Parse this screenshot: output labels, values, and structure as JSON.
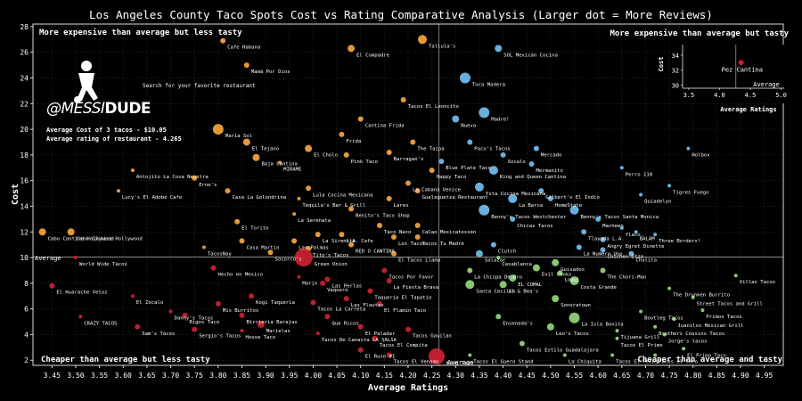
{
  "chart_data": {
    "type": "scatter",
    "title": "Los Angeles County Taco Spots Cost vs Rating Comparative Analysis (Larger dot = More Reviews)",
    "xlabel": "Average Ratings",
    "ylabel": "Cost",
    "xlim": [
      3.41,
      4.99
    ],
    "ylim": [
      1.6,
      28.2
    ],
    "x_ticks": [
      "3.45",
      "3.50",
      "3.55",
      "3.60",
      "3.65",
      "3.70",
      "3.75",
      "3.80",
      "3.85",
      "3.90",
      "3.95",
      "4.00",
      "4.05",
      "4.10",
      "4.15",
      "4.20",
      "4.25",
      "4.30",
      "4.35",
      "4.40",
      "4.45",
      "4.50",
      "4.55",
      "4.60",
      "4.65",
      "4.70",
      "4.75",
      "4.80",
      "4.85",
      "4.90",
      "4.95"
    ],
    "y_ticks": [
      2,
      4,
      6,
      8,
      10,
      12,
      14,
      16,
      18,
      20,
      22,
      24,
      26,
      28
    ],
    "average_rating": 4.265,
    "average_cost": 10.05,
    "average_label": "Average",
    "colors": {
      "expensive_less_tasty": "#f0a03c",
      "expensive_tastier": "#6fb8e8",
      "cheaper_less_tasty": "#c8202f",
      "cheaper_tastier": "#8fd17a",
      "grid": "#555555",
      "average_line": "#9a9a9a"
    },
    "quadrant_labels": {
      "top_left": "More expensive than average but less tasty",
      "top_right": "More expensive than average but tasty",
      "bottom_left": "Cheaper than average but less tasty",
      "bottom_right": "Cheaper than average and tasty"
    },
    "points": [
      {
        "x": 4.23,
        "y": 27.0,
        "s": 5,
        "label": "Tallula's"
      },
      {
        "x": 4.08,
        "y": 26.3,
        "s": 4,
        "label": "El Compadre"
      },
      {
        "x": 3.81,
        "y": 26.9,
        "s": 3,
        "label": "Cafe Habana"
      },
      {
        "x": 3.86,
        "y": 25.0,
        "s": 3,
        "label": "Mamá Por Dios"
      },
      {
        "x": 4.39,
        "y": 26.3,
        "s": 4,
        "label": "SOL Mexican Cocina"
      },
      {
        "x": 4.32,
        "y": 24.0,
        "s": 6,
        "label": "Toca Madera"
      },
      {
        "x": 4.19,
        "y": 22.3,
        "s": 3,
        "label": "Tacos El Leoncito"
      },
      {
        "x": 4.1,
        "y": 20.8,
        "s": 3,
        "label": "Cantina Frida"
      },
      {
        "x": 4.06,
        "y": 19.6,
        "s": 3,
        "label": "Frida"
      },
      {
        "x": 4.36,
        "y": 21.3,
        "s": 6,
        "label": "Madre!"
      },
      {
        "x": 4.3,
        "y": 20.8,
        "s": 4,
        "label": "Nueva"
      },
      {
        "x": 4.21,
        "y": 19.0,
        "s": 3,
        "label": "The Taipa"
      },
      {
        "x": 3.8,
        "y": 20.0,
        "s": 6,
        "label": "María Sol"
      },
      {
        "x": 3.86,
        "y": 19.0,
        "s": 4,
        "label": "El Tejano"
      },
      {
        "x": 3.88,
        "y": 17.8,
        "s": 4,
        "label": "Baja Cantina"
      },
      {
        "x": 3.99,
        "y": 18.5,
        "s": 4,
        "label": "El Cholo"
      },
      {
        "x": 4.07,
        "y": 18.0,
        "s": 3,
        "label": "Pink Taco"
      },
      {
        "x": 4.16,
        "y": 18.2,
        "s": 3,
        "label": "Barragan's"
      },
      {
        "x": 4.33,
        "y": 19.0,
        "s": 3,
        "label": "Paco's Tacos"
      },
      {
        "x": 4.27,
        "y": 17.5,
        "s": 3,
        "label": "Blue Plate Taco"
      },
      {
        "x": 4.25,
        "y": 16.8,
        "s": 3,
        "label": "Happy Taco"
      },
      {
        "x": 4.4,
        "y": 18.0,
        "s": 3,
        "label": "Socalo"
      },
      {
        "x": 4.47,
        "y": 18.5,
        "s": 3,
        "label": "Mercado"
      },
      {
        "x": 4.38,
        "y": 16.8,
        "s": 5,
        "label": "King and Queen Cantina"
      },
      {
        "x": 4.46,
        "y": 17.3,
        "s": 3,
        "label": "Mermanito"
      },
      {
        "x": 4.79,
        "y": 18.5,
        "s": 2,
        "label": "Holbox"
      },
      {
        "x": 4.65,
        "y": 17.0,
        "s": 2,
        "label": "Perro 110"
      },
      {
        "x": 4.75,
        "y": 15.6,
        "s": 2,
        "label": "Tigres Fuego"
      },
      {
        "x": 4.69,
        "y": 14.9,
        "s": 2,
        "label": "Quiadelyn"
      },
      {
        "x": 3.93,
        "y": 17.4,
        "s": 2,
        "label": "MIRAME"
      },
      {
        "x": 3.62,
        "y": 16.8,
        "s": 2,
        "label": "Antojito La Cosa Neustra"
      },
      {
        "x": 3.75,
        "y": 16.2,
        "s": 3,
        "label": "Erne's"
      },
      {
        "x": 3.59,
        "y": 15.2,
        "s": 2,
        "label": "Lucy's El Adobe Cafe"
      },
      {
        "x": 3.82,
        "y": 15.2,
        "s": 3,
        "label": "Casa La Golondrina"
      },
      {
        "x": 3.99,
        "y": 15.4,
        "s": 3,
        "label": "Lula Cocina Mexicana"
      },
      {
        "x": 3.97,
        "y": 14.6,
        "s": 2,
        "label": "Tequila's Bar & Grill"
      },
      {
        "x": 4.2,
        "y": 15.8,
        "s": 3,
        "label": "La Cabana Venice"
      },
      {
        "x": 4.22,
        "y": 15.2,
        "s": 3,
        "label": "Gueleguetza Restaurant"
      },
      {
        "x": 4.16,
        "y": 14.6,
        "s": 3,
        "label": "Lares"
      },
      {
        "x": 4.35,
        "y": 15.5,
        "s": 5,
        "label": "Yxta Cocina Mexicana"
      },
      {
        "x": 4.48,
        "y": 15.2,
        "s": 3,
        "label": "Gilbert's El Indio"
      },
      {
        "x": 4.42,
        "y": 14.6,
        "s": 5,
        "label": "La Barca"
      },
      {
        "x": 4.5,
        "y": 14.6,
        "s": 3,
        "label": "HomeState"
      },
      {
        "x": 4.36,
        "y": 13.7,
        "s": 6,
        "label": "Benny's Tacos Westchester"
      },
      {
        "x": 4.55,
        "y": 13.7,
        "s": 5,
        "label": "Benny's Tacos Santa Monica"
      },
      {
        "x": 4.08,
        "y": 13.8,
        "s": 3,
        "label": "Benito's Taco Shop"
      },
      {
        "x": 3.96,
        "y": 13.4,
        "s": 2,
        "label": "La Serenata"
      },
      {
        "x": 3.84,
        "y": 12.8,
        "s": 3,
        "label": "El Torito"
      },
      {
        "x": 4.42,
        "y": 13.0,
        "s": 3,
        "label": "Chicas Tacos"
      },
      {
        "x": 4.6,
        "y": 13.0,
        "s": 3,
        "label": "Macheen"
      },
      {
        "x": 4.14,
        "y": 12.5,
        "s": 3,
        "label": "Taco Naco"
      },
      {
        "x": 4.22,
        "y": 12.5,
        "s": 3,
        "label": "CaCao Mexicatessen"
      },
      {
        "x": 4.65,
        "y": 12.3,
        "s": 2,
        "label": "flaco."
      },
      {
        "x": 4.57,
        "y": 12.0,
        "s": 3,
        "label": "Tlayuda L.A."
      },
      {
        "x": 4.68,
        "y": 12.0,
        "s": 2,
        "label": "BALAM"
      },
      {
        "x": 3.43,
        "y": 12.0,
        "s": 4,
        "label": "Cabo Cantina Hollywood"
      },
      {
        "x": 3.49,
        "y": 12.0,
        "s": 4,
        "label": "Cabo Cantina Hollywood"
      },
      {
        "x": 4.01,
        "y": 11.8,
        "s": 3,
        "label": "La Sirenita"
      },
      {
        "x": 4.06,
        "y": 11.8,
        "s": 3,
        "label": "L.A. Cafe"
      },
      {
        "x": 4.17,
        "y": 11.6,
        "s": 3,
        "label": "Los Tacos"
      },
      {
        "x": 4.22,
        "y": 11.6,
        "s": 3,
        "label": "Tacos Tu Madre"
      },
      {
        "x": 4.61,
        "y": 11.4,
        "s": 3,
        "label": "Angry Egret Dinette"
      },
      {
        "x": 4.72,
        "y": 11.8,
        "s": 2,
        "label": "Three Borders!"
      },
      {
        "x": 3.85,
        "y": 11.3,
        "s": 3,
        "label": "Casa Martin"
      },
      {
        "x": 3.96,
        "y": 11.3,
        "s": 3,
        "label": "Las Palmas"
      },
      {
        "x": 4.08,
        "y": 11.0,
        "s": 3,
        "label": "RED O CANTINA"
      },
      {
        "x": 4.38,
        "y": 11.0,
        "s": 3,
        "label": "Clutch"
      },
      {
        "x": 4.56,
        "y": 10.8,
        "s": 3,
        "label": "La Numero Uno"
      },
      {
        "x": 3.99,
        "y": 10.7,
        "s": 3,
        "label": "Tito's Tacos"
      },
      {
        "x": 3.77,
        "y": 10.8,
        "s": 2,
        "label": "TacosNay"
      },
      {
        "x": 4.61,
        "y": 10.6,
        "s": 3,
        "label": "Chichen Itza"
      },
      {
        "x": 4.67,
        "y": 10.3,
        "s": 3,
        "label": "Chulita"
      },
      {
        "x": 4.35,
        "y": 10.3,
        "s": 4,
        "label": "Salazar"
      },
      {
        "x": 3.91,
        "y": 10.4,
        "s": 3,
        "label": "Socorro's"
      },
      {
        "x": 4.17,
        "y": 10.3,
        "s": 3,
        "label": "El Tacos Llama"
      },
      {
        "x": 3.5,
        "y": 10.0,
        "s": 2,
        "label": "World Wide Tacos"
      },
      {
        "x": 3.98,
        "y": 10.0,
        "s": 10,
        "label": "Green Onion"
      },
      {
        "x": 4.39,
        "y": 10.0,
        "s": 2,
        "label": "Casablanca"
      },
      {
        "x": 4.51,
        "y": 9.6,
        "s": 4,
        "label": "Guisados"
      },
      {
        "x": 3.79,
        "y": 9.2,
        "s": 3,
        "label": "Hecho en Mexico"
      },
      {
        "x": 4.15,
        "y": 9.0,
        "s": 3,
        "label": "Tacos Por Favor"
      },
      {
        "x": 4.33,
        "y": 9.0,
        "s": 3,
        "label": "La Chispa De Oro"
      },
      {
        "x": 4.47,
        "y": 9.2,
        "s": 4,
        "label": "Evil Cooks"
      },
      {
        "x": 4.61,
        "y": 9.0,
        "s": 3,
        "label": "The Chori-Man"
      },
      {
        "x": 4.52,
        "y": 8.8,
        "s": 3,
        "label": "Loqui"
      },
      {
        "x": 4.42,
        "y": 8.4,
        "s": 4,
        "label": "EL COMAL"
      },
      {
        "x": 4.03,
        "y": 8.3,
        "s": 3,
        "label": "Las Perlas"
      },
      {
        "x": 3.97,
        "y": 8.5,
        "s": 2,
        "label": "Marix"
      },
      {
        "x": 4.02,
        "y": 8.0,
        "s": 3,
        "label": "Vaquero"
      },
      {
        "x": 4.16,
        "y": 8.2,
        "s": 3,
        "label": "La Fiesta Brava"
      },
      {
        "x": 4.33,
        "y": 7.9,
        "s": 5,
        "label": "Santa Cecilia"
      },
      {
        "x": 4.4,
        "y": 7.9,
        "s": 4,
        "label": "Al & Bea's"
      },
      {
        "x": 4.55,
        "y": 8.2,
        "s": 5,
        "label": "Costa Grande"
      },
      {
        "x": 4.89,
        "y": 8.6,
        "s": 2,
        "label": "Villas Tacos"
      },
      {
        "x": 4.75,
        "y": 7.6,
        "s": 2,
        "label": "The Drunken Burrito"
      },
      {
        "x": 3.45,
        "y": 7.8,
        "s": 3,
        "label": "El Huarache Veloz"
      },
      {
        "x": 4.12,
        "y": 7.4,
        "s": 3,
        "label": "Taqueria El Tapatio"
      },
      {
        "x": 4.07,
        "y": 6.8,
        "s": 3,
        "label": "Las Flautas"
      },
      {
        "x": 3.87,
        "y": 7.0,
        "s": 3,
        "label": "Kogi Taqueria"
      },
      {
        "x": 3.62,
        "y": 7.0,
        "s": 2,
        "label": "El Zocalo"
      },
      {
        "x": 4.14,
        "y": 6.4,
        "s": 3,
        "label": "El Flamin Taco"
      },
      {
        "x": 4.0,
        "y": 6.5,
        "s": 3,
        "label": "Tacos La Carreta"
      },
      {
        "x": 3.8,
        "y": 6.4,
        "s": 3,
        "label": "Mis Burritos"
      },
      {
        "x": 4.51,
        "y": 6.8,
        "s": 4,
        "label": "Sonoratown"
      },
      {
        "x": 4.8,
        "y": 6.9,
        "s": 2,
        "label": "Street Tacos and Grill"
      },
      {
        "x": 3.7,
        "y": 5.8,
        "s": 2,
        "label": "Danny's Tacos"
      },
      {
        "x": 3.51,
        "y": 5.4,
        "s": 2,
        "label": "CRAZY TACOS"
      },
      {
        "x": 3.73,
        "y": 5.5,
        "s": 3,
        "label": "Rigos Taco"
      },
      {
        "x": 3.85,
        "y": 5.5,
        "s": 3,
        "label": "Birrieria Barajas"
      },
      {
        "x": 4.03,
        "y": 5.4,
        "s": 3,
        "label": "Que Ricos"
      },
      {
        "x": 4.39,
        "y": 5.4,
        "s": 3,
        "label": "Ensenada's"
      },
      {
        "x": 4.55,
        "y": 5.3,
        "s": 6,
        "label": "La Isla Bonita"
      },
      {
        "x": 4.69,
        "y": 5.8,
        "s": 2,
        "label": "Bootleg Tacos"
      },
      {
        "x": 4.82,
        "y": 5.9,
        "s": 2,
        "label": "Primos Tacos"
      },
      {
        "x": 4.76,
        "y": 5.2,
        "s": 2,
        "label": "Juanilos Mexican Grill"
      },
      {
        "x": 3.89,
        "y": 4.8,
        "s": 4,
        "label": "Marielas"
      },
      {
        "x": 4.1,
        "y": 4.6,
        "s": 3,
        "label": "El Paladar"
      },
      {
        "x": 4.2,
        "y": 4.4,
        "s": 3,
        "label": "Tacos Gavilan"
      },
      {
        "x": 4.5,
        "y": 4.6,
        "s": 4,
        "label": "Leo's Tacos"
      },
      {
        "x": 3.63,
        "y": 4.6,
        "s": 3,
        "label": "Sam's Tacos"
      },
      {
        "x": 3.75,
        "y": 4.4,
        "s": 3,
        "label": "Sergio's Tacos"
      },
      {
        "x": 3.85,
        "y": 4.3,
        "s": 2,
        "label": "House Taco"
      },
      {
        "x": 4.01,
        "y": 4.1,
        "s": 2,
        "label": "Tacos De Canasta LA SALSA"
      },
      {
        "x": 4.64,
        "y": 4.3,
        "s": 2,
        "label": "Tijuana Grill"
      },
      {
        "x": 4.72,
        "y": 4.6,
        "s": 2,
        "label": "Brothers Cousins Tacos"
      },
      {
        "x": 4.74,
        "y": 4.0,
        "s": 2,
        "label": "Jorge's tacos"
      },
      {
        "x": 4.13,
        "y": 3.7,
        "s": 3,
        "label": "Tacos El Compita"
      },
      {
        "x": 4.64,
        "y": 3.7,
        "s": 2,
        "label": "Tacos El Primo"
      },
      {
        "x": 4.44,
        "y": 3.3,
        "s": 3,
        "label": "Tacos Estilo Guadalajara"
      },
      {
        "x": 4.1,
        "y": 2.8,
        "s": 3,
        "label": "El Ruso #1"
      },
      {
        "x": 4.78,
        "y": 2.9,
        "s": 2,
        "label": "El Primo Taco"
      },
      {
        "x": 4.16,
        "y": 2.4,
        "s": 3,
        "label": "Tacos El Venado"
      },
      {
        "x": 4.26,
        "y": 2.3,
        "s": 9,
        "label": "King Taco"
      },
      {
        "x": 4.33,
        "y": 2.4,
        "s": 2,
        "label": "Tacos El Guero Stand"
      },
      {
        "x": 4.53,
        "y": 2.4,
        "s": 2,
        "label": "La Chiquita"
      },
      {
        "x": 4.63,
        "y": 2.4,
        "s": 2,
        "label": "Tacos El Pecas"
      },
      {
        "x": 4.72,
        "y": 2.4,
        "s": 2,
        "label": "Tacos el toro"
      }
    ],
    "inset": {
      "xlabel": "Average Ratings",
      "ylabel": "Cost",
      "xlim": [
        3.4,
        5.05
      ],
      "ylim": [
        29.6,
        35.4
      ],
      "x_ticks": [
        "3.5",
        "4.0",
        "4.5",
        "5.0"
      ],
      "y_ticks": [
        30,
        32,
        34
      ],
      "average_label": "Average",
      "average_rating": 4.265,
      "points": [
        {
          "x": 4.35,
          "y": 33.0,
          "s": 3,
          "label": "Pez Cantina"
        }
      ]
    }
  },
  "branding": {
    "logo_prefix": "@MESSI",
    "logo_suffix": "DUDE",
    "tagline": "Search for your favorite restaurant",
    "avg_cost_text": "Average Cost of 3 tacos - $10.05",
    "avg_rating_text": "Average rating of restaurant - 4.265"
  }
}
